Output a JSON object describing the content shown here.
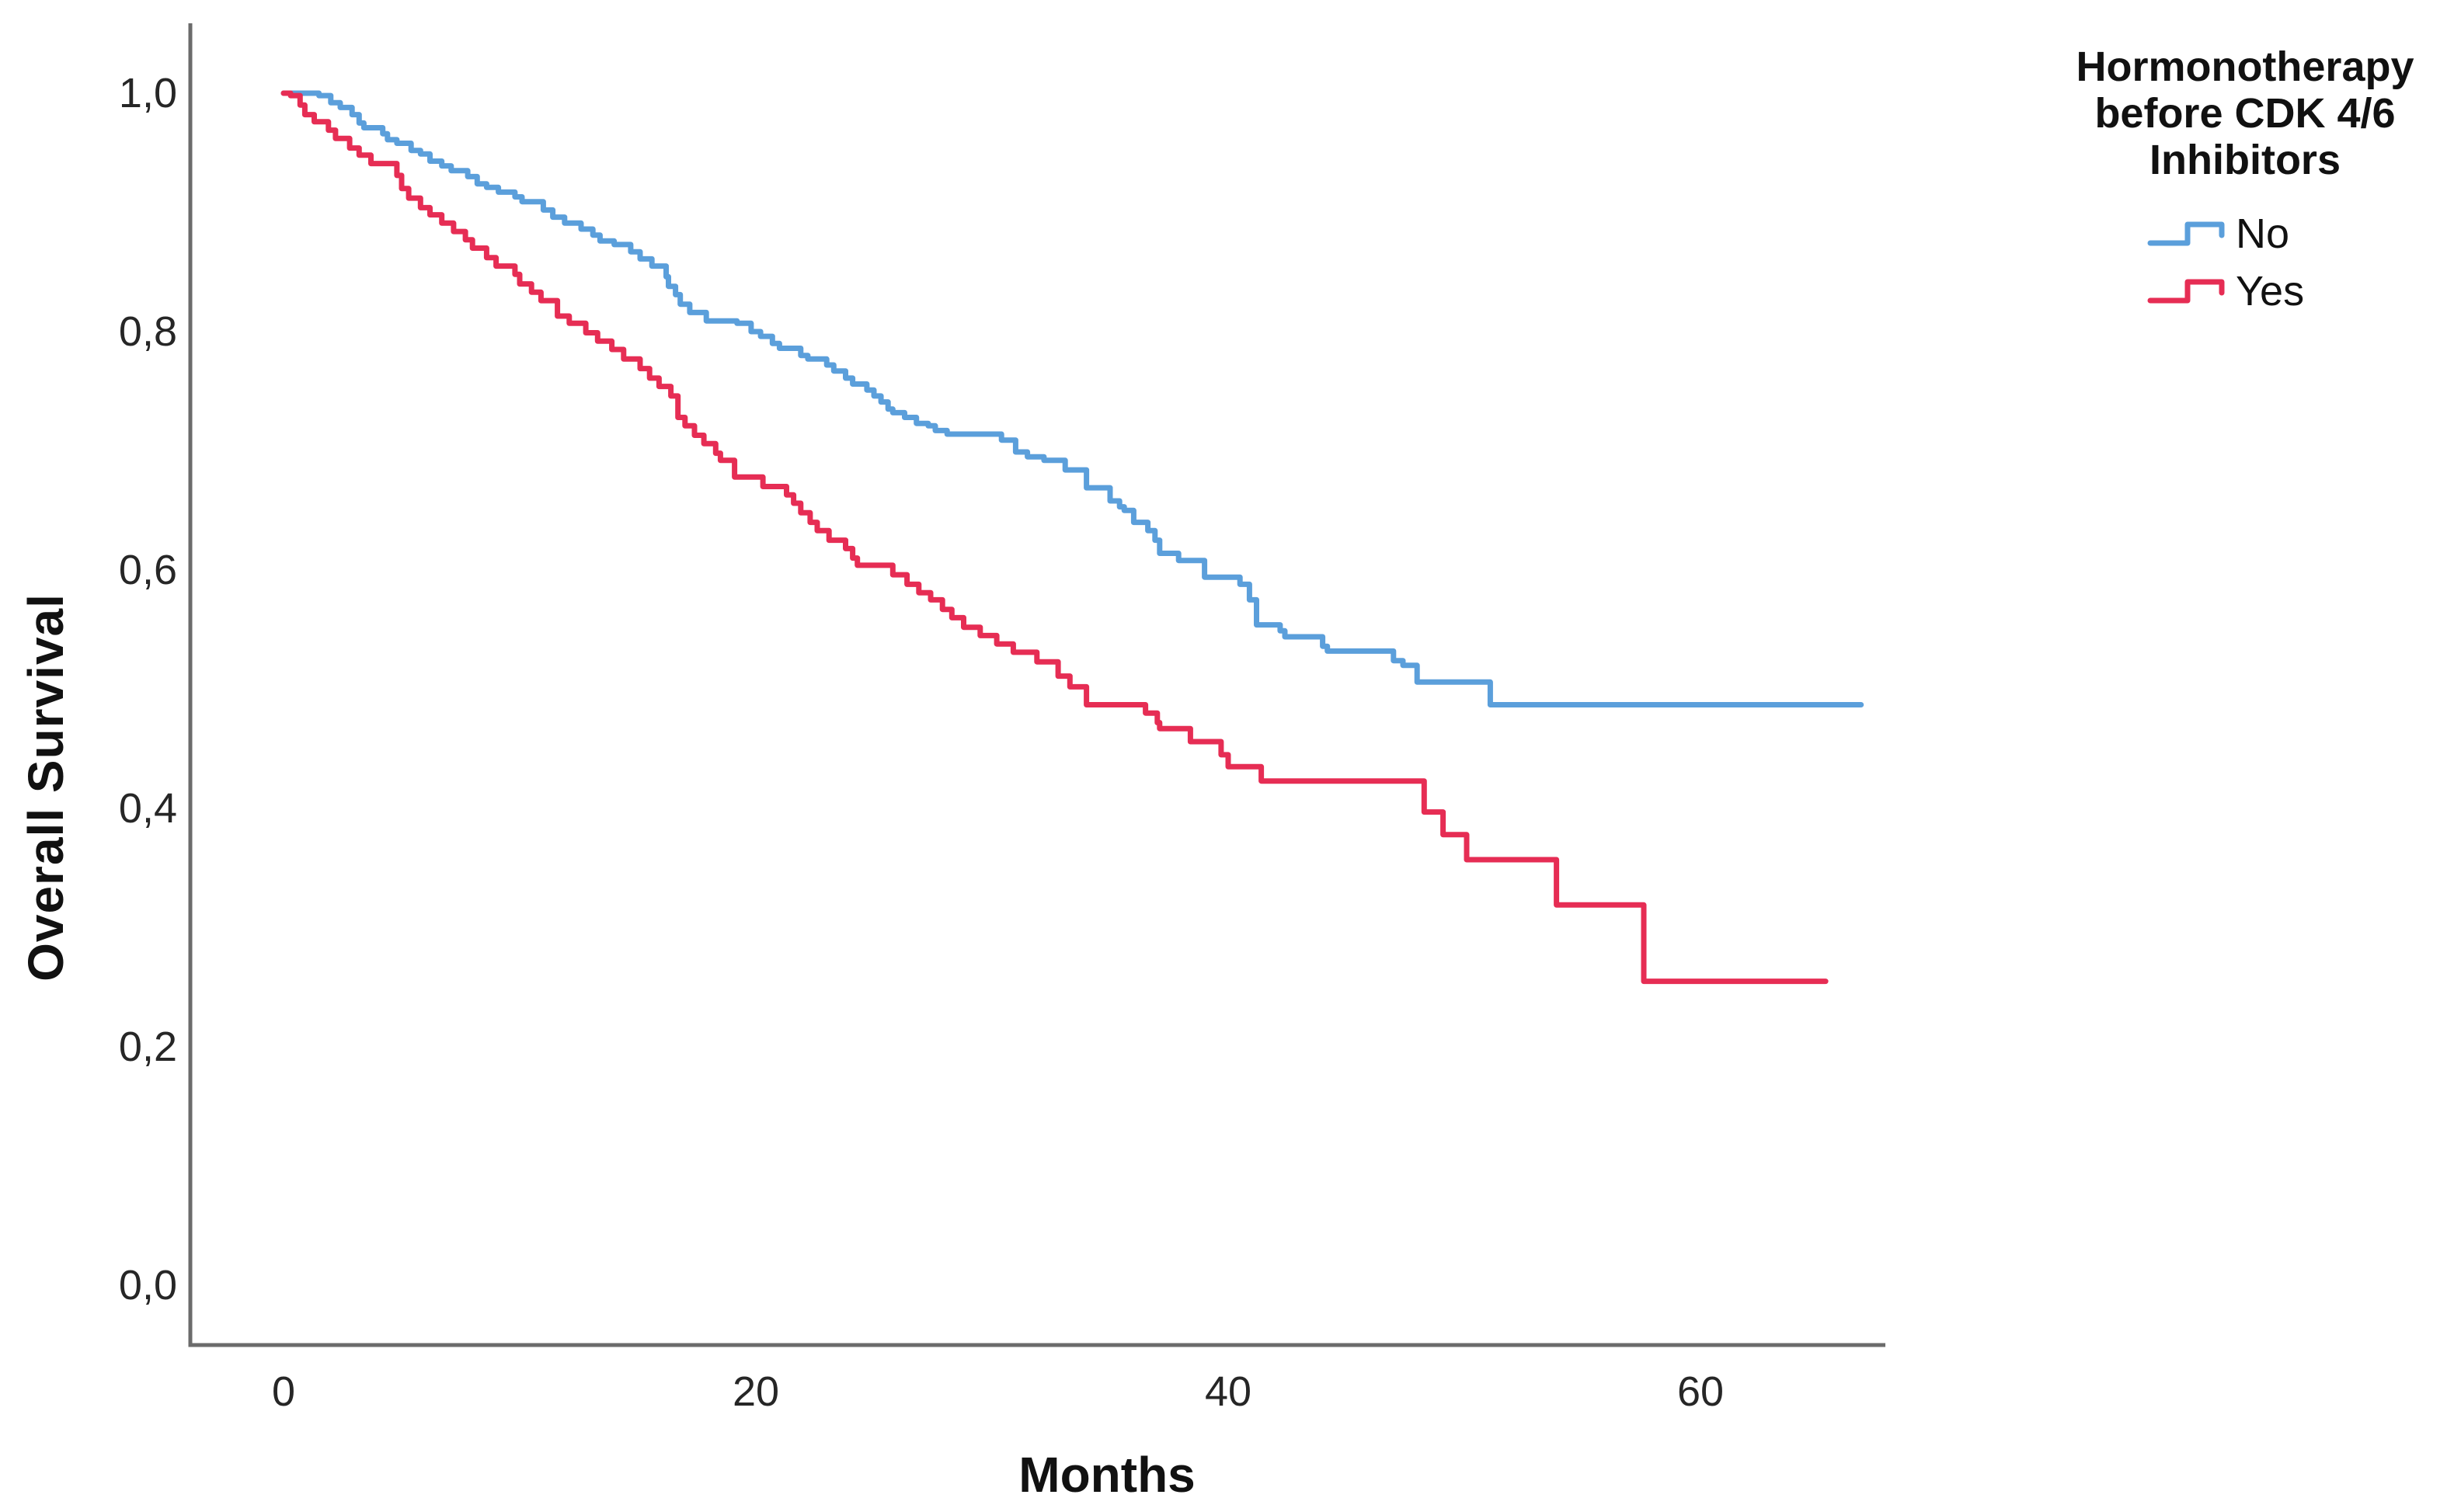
{
  "figure": {
    "xlabel": "Months",
    "ylabel": "Overall Survival",
    "x_tick_labels": [
      "0",
      "20",
      "40",
      "60"
    ],
    "y_tick_labels": [
      "0,0",
      "0,2",
      "0,4",
      "0,6",
      "0,8",
      "1,0"
    ],
    "axis_color": "#6b6b6b",
    "text_color": "#111111"
  },
  "legend": {
    "title_lines": [
      "Hormonotherapy",
      "before CDK 4/6",
      "Inhibitors"
    ],
    "entries": [
      {
        "label": "No",
        "color": "#5B9FDB",
        "icon": "step-line-swatch"
      },
      {
        "label": "Yes",
        "color": "#E62D54",
        "icon": "step-line-swatch"
      }
    ]
  },
  "chart_data": {
    "type": "line",
    "subtype": "kaplan-meier-step",
    "title": "",
    "xlabel": "Months",
    "ylabel": "Overall Survival",
    "legend_title": "Hormonotherapy before CDK 4/6 Inhibitors",
    "legend_position": "right-top",
    "grid": false,
    "x_ticks": [
      0,
      20,
      40,
      60
    ],
    "y_ticks": [
      0.0,
      0.2,
      0.4,
      0.6,
      0.8,
      1.0
    ],
    "y_tick_labels": [
      "0,0",
      "0,2",
      "0,4",
      "0,6",
      "0,8",
      "1,0"
    ],
    "xlim": [
      -3.9,
      67.8
    ],
    "ylim": [
      -0.05,
      1.06
    ],
    "series": [
      {
        "name": "No",
        "color": "#5B9FDB",
        "end_month": 66.8,
        "points": [
          [
            0,
            1.0
          ],
          [
            1.5,
            0.998
          ],
          [
            2.0,
            0.992
          ],
          [
            2.4,
            0.988
          ],
          [
            2.9,
            0.982
          ],
          [
            3.2,
            0.975
          ],
          [
            3.4,
            0.971
          ],
          [
            4.2,
            0.966
          ],
          [
            4.4,
            0.961
          ],
          [
            4.8,
            0.958
          ],
          [
            5.4,
            0.952
          ],
          [
            5.8,
            0.949
          ],
          [
            6.2,
            0.943
          ],
          [
            6.7,
            0.939
          ],
          [
            7.1,
            0.935
          ],
          [
            7.8,
            0.93
          ],
          [
            8.2,
            0.924
          ],
          [
            8.6,
            0.921
          ],
          [
            9.1,
            0.917
          ],
          [
            9.8,
            0.913
          ],
          [
            10.1,
            0.909
          ],
          [
            11.0,
            0.902
          ],
          [
            11.4,
            0.896
          ],
          [
            11.9,
            0.891
          ],
          [
            12.6,
            0.886
          ],
          [
            13.1,
            0.881
          ],
          [
            13.4,
            0.876
          ],
          [
            14.0,
            0.873
          ],
          [
            14.7,
            0.867
          ],
          [
            15.1,
            0.861
          ],
          [
            15.6,
            0.855
          ],
          [
            16.2,
            0.846
          ],
          [
            16.3,
            0.838
          ],
          [
            16.6,
            0.831
          ],
          [
            16.8,
            0.823
          ],
          [
            17.2,
            0.816
          ],
          [
            17.9,
            0.809
          ],
          [
            19.2,
            0.807
          ],
          [
            19.8,
            0.8
          ],
          [
            20.2,
            0.796
          ],
          [
            20.7,
            0.79
          ],
          [
            21.0,
            0.786
          ],
          [
            21.9,
            0.78
          ],
          [
            22.2,
            0.777
          ],
          [
            23.0,
            0.772
          ],
          [
            23.3,
            0.767
          ],
          [
            23.8,
            0.761
          ],
          [
            24.1,
            0.756
          ],
          [
            24.7,
            0.751
          ],
          [
            25.0,
            0.746
          ],
          [
            25.3,
            0.741
          ],
          [
            25.6,
            0.735
          ],
          [
            25.8,
            0.732
          ],
          [
            26.3,
            0.728
          ],
          [
            26.8,
            0.723
          ],
          [
            27.3,
            0.721
          ],
          [
            27.6,
            0.717
          ],
          [
            28.1,
            0.714
          ],
          [
            30.4,
            0.709
          ],
          [
            31.0,
            0.699
          ],
          [
            31.5,
            0.695
          ],
          [
            32.2,
            0.692
          ],
          [
            33.1,
            0.684
          ],
          [
            34.0,
            0.669
          ],
          [
            35.0,
            0.658
          ],
          [
            35.4,
            0.653
          ],
          [
            35.6,
            0.65
          ],
          [
            36.0,
            0.64
          ],
          [
            36.6,
            0.633
          ],
          [
            36.9,
            0.625
          ],
          [
            37.1,
            0.614
          ],
          [
            37.9,
            0.608
          ],
          [
            39.0,
            0.594
          ],
          [
            40.5,
            0.588
          ],
          [
            40.9,
            0.575
          ],
          [
            41.2,
            0.554
          ],
          [
            42.2,
            0.549
          ],
          [
            42.4,
            0.544
          ],
          [
            44.0,
            0.536
          ],
          [
            44.2,
            0.532
          ],
          [
            47.0,
            0.524
          ],
          [
            47.4,
            0.52
          ],
          [
            48.0,
            0.506
          ],
          [
            51.1,
            0.487
          ]
        ]
      },
      {
        "name": "Yes",
        "color": "#E62D54",
        "end_month": 65.3,
        "points": [
          [
            0,
            1.0
          ],
          [
            0.3,
            0.998
          ],
          [
            0.7,
            0.99
          ],
          [
            0.9,
            0.982
          ],
          [
            1.3,
            0.976
          ],
          [
            1.9,
            0.969
          ],
          [
            2.2,
            0.962
          ],
          [
            2.8,
            0.954
          ],
          [
            3.2,
            0.948
          ],
          [
            3.7,
            0.941
          ],
          [
            4.8,
            0.931
          ],
          [
            5.0,
            0.92
          ],
          [
            5.3,
            0.912
          ],
          [
            5.8,
            0.904
          ],
          [
            6.2,
            0.898
          ],
          [
            6.7,
            0.891
          ],
          [
            7.2,
            0.884
          ],
          [
            7.7,
            0.877
          ],
          [
            8.0,
            0.87
          ],
          [
            8.6,
            0.862
          ],
          [
            9.0,
            0.855
          ],
          [
            9.8,
            0.848
          ],
          [
            10.0,
            0.84
          ],
          [
            10.5,
            0.833
          ],
          [
            10.9,
            0.826
          ],
          [
            11.6,
            0.813
          ],
          [
            12.1,
            0.807
          ],
          [
            12.8,
            0.799
          ],
          [
            13.3,
            0.792
          ],
          [
            13.9,
            0.785
          ],
          [
            14.4,
            0.777
          ],
          [
            15.1,
            0.769
          ],
          [
            15.5,
            0.761
          ],
          [
            15.9,
            0.754
          ],
          [
            16.4,
            0.746
          ],
          [
            16.7,
            0.728
          ],
          [
            17.0,
            0.721
          ],
          [
            17.4,
            0.713
          ],
          [
            17.8,
            0.706
          ],
          [
            18.3,
            0.698
          ],
          [
            18.5,
            0.692
          ],
          [
            19.1,
            0.678
          ],
          [
            20.3,
            0.67
          ],
          [
            21.3,
            0.663
          ],
          [
            21.6,
            0.656
          ],
          [
            21.9,
            0.648
          ],
          [
            22.3,
            0.64
          ],
          [
            22.6,
            0.633
          ],
          [
            23.1,
            0.625
          ],
          [
            23.8,
            0.618
          ],
          [
            24.1,
            0.61
          ],
          [
            24.3,
            0.604
          ],
          [
            25.8,
            0.596
          ],
          [
            26.4,
            0.588
          ],
          [
            26.9,
            0.581
          ],
          [
            27.4,
            0.575
          ],
          [
            27.9,
            0.567
          ],
          [
            28.3,
            0.56
          ],
          [
            28.8,
            0.552
          ],
          [
            29.5,
            0.545
          ],
          [
            30.2,
            0.538
          ],
          [
            30.9,
            0.531
          ],
          [
            31.9,
            0.523
          ],
          [
            32.8,
            0.511
          ],
          [
            33.3,
            0.502
          ],
          [
            34.0,
            0.487
          ],
          [
            36.5,
            0.48
          ],
          [
            37.0,
            0.472
          ],
          [
            37.1,
            0.467
          ],
          [
            38.4,
            0.456
          ],
          [
            39.7,
            0.445
          ],
          [
            40.0,
            0.435
          ],
          [
            41.4,
            0.423
          ],
          [
            48.3,
            0.397
          ],
          [
            49.1,
            0.378
          ],
          [
            50.1,
            0.357
          ],
          [
            53.9,
            0.319
          ],
          [
            57.6,
            0.255
          ]
        ]
      }
    ]
  }
}
